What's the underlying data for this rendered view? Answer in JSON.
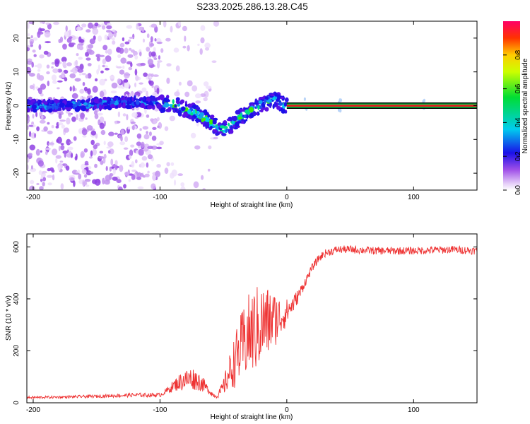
{
  "title": "S233.2025.286.13.28.C45",
  "colors": {
    "snr_line": "#ee3333",
    "track_center": "#dd2222",
    "track_edge": "#00cc44",
    "track_border": "#000000"
  },
  "chart_data": [
    {
      "type": "heatmap",
      "xlabel": "Height of straight line (km)",
      "ylabel": "Frequency (Hz)",
      "xlim": [
        -205,
        150
      ],
      "ylim": [
        -25,
        25
      ],
      "xticks": [
        -200,
        -100,
        0,
        100
      ],
      "yticks": [
        -20,
        -10,
        0,
        10,
        20
      ],
      "colorbar": {
        "label": "Normalized spectral amplitude",
        "range": [
          0,
          1
        ],
        "ticks": [
          0.0,
          0.2,
          0.4,
          0.6,
          0.8
        ]
      },
      "frequency_track": {
        "x": [
          -205,
          -180,
          -150,
          -130,
          -110,
          -100,
          -90,
          -80,
          -70,
          -60,
          -55,
          -50,
          -45,
          -40,
          -35,
          -30,
          -25,
          -20,
          -15,
          -12,
          -8,
          -4,
          0,
          20,
          50,
          100,
          150
        ],
        "y": [
          0,
          0,
          0.5,
          1,
          1,
          0.8,
          0.3,
          -1,
          -2.5,
          -5,
          -6.5,
          -7,
          -6,
          -4.5,
          -3,
          -2,
          -0.8,
          0.3,
          1,
          2,
          1.5,
          0.6,
          0,
          0,
          0,
          0,
          0
        ]
      }
    },
    {
      "type": "line",
      "xlabel": "Height of straight line (km)",
      "ylabel": "SNR (10 * v/v)",
      "xlim": [
        -205,
        150
      ],
      "ylim": [
        0,
        650
      ],
      "xticks": [
        -200,
        -100,
        0,
        100
      ],
      "yticks": [
        0,
        200,
        400,
        600
      ],
      "series": [
        {
          "name": "SNR",
          "x": [
            -205,
            -180,
            -150,
            -120,
            -100,
            -95,
            -88,
            -82,
            -75,
            -68,
            -62,
            -58,
            -55,
            -50,
            -45,
            -40,
            -35,
            -30,
            -25,
            -20,
            -15,
            -10,
            -5,
            0,
            5,
            10,
            15,
            20,
            25,
            30,
            40,
            50,
            70,
            100,
            130,
            150
          ],
          "y": [
            20,
            22,
            25,
            30,
            30,
            45,
            70,
            85,
            95,
            80,
            50,
            30,
            25,
            60,
            120,
            170,
            220,
            260,
            280,
            300,
            310,
            320,
            330,
            350,
            380,
            420,
            470,
            520,
            555,
            575,
            590,
            590,
            585,
            585,
            590,
            585
          ],
          "amplitude": [
            5,
            5,
            6,
            8,
            8,
            12,
            25,
            40,
            45,
            35,
            15,
            10,
            8,
            30,
            70,
            110,
            140,
            160,
            170,
            160,
            140,
            110,
            80,
            50,
            35,
            25,
            18,
            15,
            15,
            15,
            15,
            15,
            15,
            15,
            15,
            15
          ]
        }
      ]
    }
  ]
}
